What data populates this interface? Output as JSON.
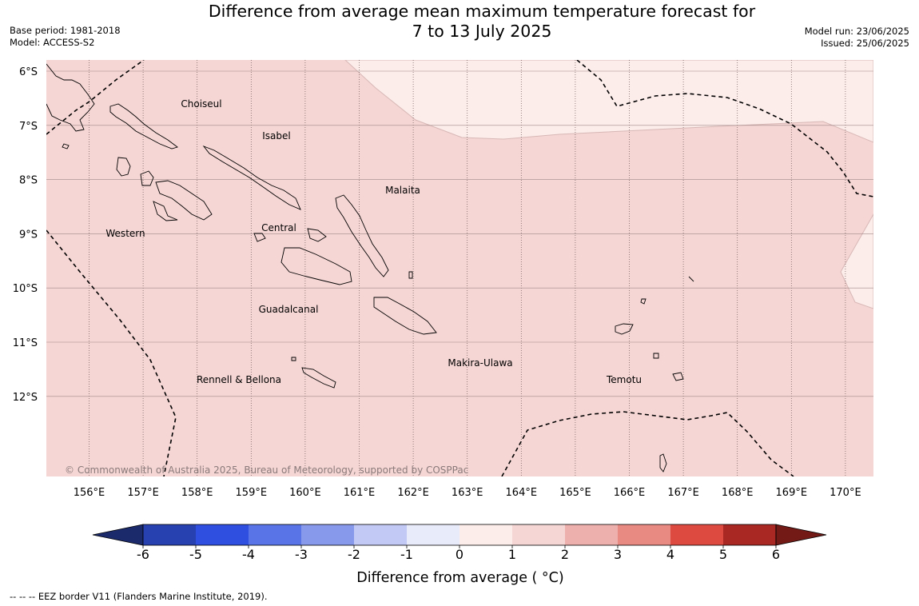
{
  "title": {
    "line1": "Difference from average mean maximum temperature forecast for",
    "line2": "7 to 13 July 2025"
  },
  "meta_left": {
    "base_period": "Base period: 1981-2018",
    "model": "Model: ACCESS-S2"
  },
  "meta_right": {
    "model_run": "Model run: 23/06/2025",
    "issued": "Issued: 25/06/2025"
  },
  "map": {
    "lat_labels": [
      "6°S",
      "7°S",
      "8°S",
      "9°S",
      "10°S",
      "11°S",
      "12°S"
    ],
    "lon_labels": [
      "156°E",
      "157°E",
      "158°E",
      "159°E",
      "160°E",
      "161°E",
      "162°E",
      "163°E",
      "164°E",
      "165°E",
      "166°E",
      "167°E",
      "168°E",
      "169°E",
      "170°E"
    ],
    "regions": [
      "Choiseul",
      "Isabel",
      "Malaita",
      "Western",
      "Central",
      "Guadalcanal",
      "Makira-Ulawa",
      "Rennell & Bellona",
      "Temotu"
    ],
    "copyright": "© Commonwealth of Australia 2025, Bureau of Meteorology, supported by COSPPac",
    "fill_colors": {
      "range_1_2": "#f5d6d4",
      "range_0_1": "#fcecea"
    }
  },
  "colorbar": {
    "ticks": [
      "-6",
      "-5",
      "-4",
      "-3",
      "-2",
      "-1",
      "0",
      "1",
      "2",
      "3",
      "4",
      "5",
      "6"
    ],
    "colors": [
      "#1b2a6b",
      "#2741b0",
      "#2e4fe0",
      "#5874e6",
      "#8799ea",
      "#c2c9f4",
      "#e8ebfa",
      "#fcecea",
      "#f5d6d4",
      "#eeb0ac",
      "#e88a82",
      "#dc4a40",
      "#aa2823",
      "#731a17"
    ],
    "label": "Difference from average ( °C)"
  },
  "footer": "--  --  -- EEZ border V11 (Flanders Marine Institute, 2019)."
}
